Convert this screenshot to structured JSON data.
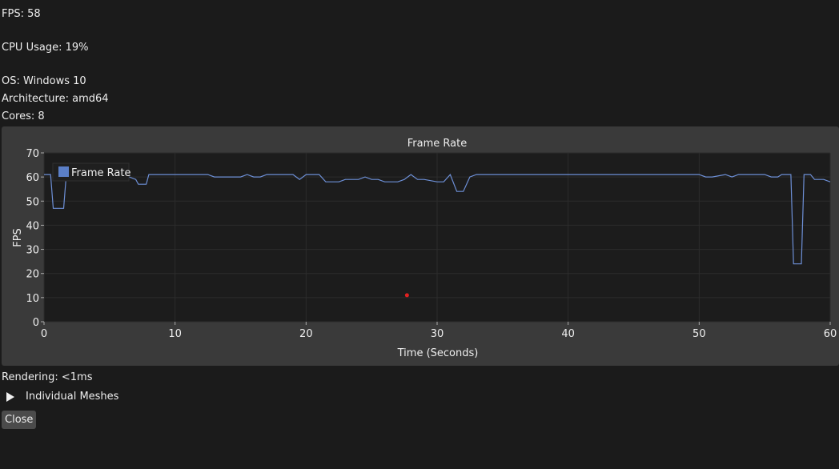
{
  "stats": {
    "fps": "FPS: 58",
    "cpu": "CPU Usage: 19%",
    "os": "OS: Windows 10",
    "arch": "Architecture: amd64",
    "cores": "Cores: 8"
  },
  "rendering": "Rendering: <1ms",
  "tree_node_label": "Individual Meshes",
  "close_label": "Close",
  "colors": {
    "line": "#6d8fd6",
    "legend_swatch": "#5b7fc7",
    "marker": "#e02020",
    "panel": "#3a3a3a",
    "plot_bg": "#1c1c1c"
  },
  "chart_data": {
    "type": "line",
    "title": "Frame Rate",
    "xlabel": "Time (Seconds)",
    "ylabel": "FPS",
    "xlim": [
      0,
      60
    ],
    "ylim": [
      0,
      70
    ],
    "x_ticks": [
      0,
      10,
      20,
      30,
      40,
      50,
      60
    ],
    "y_ticks": [
      0,
      10,
      20,
      30,
      40,
      50,
      60,
      70
    ],
    "grid": true,
    "legend": "top-left",
    "series": [
      {
        "name": "Frame Rate",
        "x": [
          0,
          0.5,
          0.7,
          1.5,
          1.7,
          2,
          6,
          6.5,
          7,
          7.2,
          7.8,
          8,
          12.5,
          13,
          15,
          15.5,
          16,
          16.5,
          17,
          19,
          19.5,
          20,
          21,
          21.5,
          22.5,
          23,
          24,
          24.5,
          25,
          25.5,
          26,
          27,
          27.5,
          28,
          28.5,
          29,
          30,
          30.5,
          31,
          31.5,
          32,
          32.5,
          33,
          35,
          40,
          45,
          50,
          50.5,
          51,
          52,
          52.5,
          53,
          55,
          55.5,
          56,
          56.3,
          56.7,
          57,
          57.2,
          57.8,
          58,
          58.5,
          58.8,
          59.5,
          60
        ],
        "y": [
          61,
          61,
          47,
          47,
          61,
          61,
          60,
          60,
          59,
          57,
          57,
          61,
          61,
          60,
          60,
          61,
          60,
          60,
          61,
          61,
          59,
          61,
          61,
          58,
          58,
          59,
          59,
          60,
          59,
          59,
          58,
          58,
          59,
          61,
          59,
          59,
          58,
          58,
          61,
          54,
          54,
          60,
          61,
          61,
          61,
          61,
          61,
          60,
          60,
          61,
          60,
          61,
          61,
          60,
          60,
          61,
          61,
          61,
          24,
          24,
          61,
          61,
          59,
          59,
          58
        ]
      }
    ],
    "marker_point": {
      "x": 27.7,
      "y": 11
    }
  }
}
